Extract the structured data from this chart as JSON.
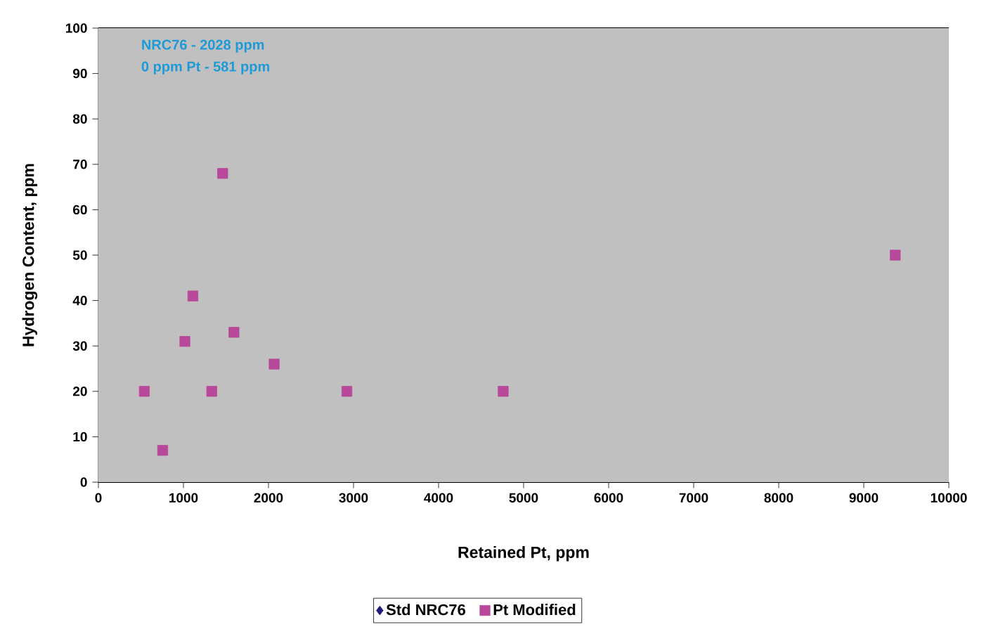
{
  "chart_data": {
    "type": "scatter",
    "xlabel": "Retained Pt, ppm",
    "ylabel": "Hydrogen Content, ppm",
    "annotations": [
      "NRC76 - 2028 ppm",
      "0 ppm Pt - 581 ppm"
    ],
    "series": [
      {
        "name": "Std NRC76",
        "color": "#1f1a7a",
        "marker": "diamond"
      },
      {
        "name": "Pt Modified",
        "color": "#b8489a",
        "marker": "square",
        "x": [
          540,
          756,
          1017,
          1111,
          1333,
          1461,
          1594,
          2067,
          2922,
          4760,
          9370
        ],
        "values": [
          20,
          7,
          31,
          41,
          20,
          68,
          33,
          26,
          20,
          20,
          50
        ]
      }
    ],
    "xlim": [
      0,
      10000
    ],
    "xticks": [
      0,
      1000,
      2000,
      3000,
      4000,
      5000,
      6000,
      7000,
      8000,
      9000,
      10000
    ],
    "ylim": [
      0,
      100
    ],
    "yticks": [
      0,
      10,
      20,
      30,
      40,
      50,
      60,
      70,
      80,
      90,
      100
    ],
    "grid": "y",
    "legend": "bottom"
  }
}
